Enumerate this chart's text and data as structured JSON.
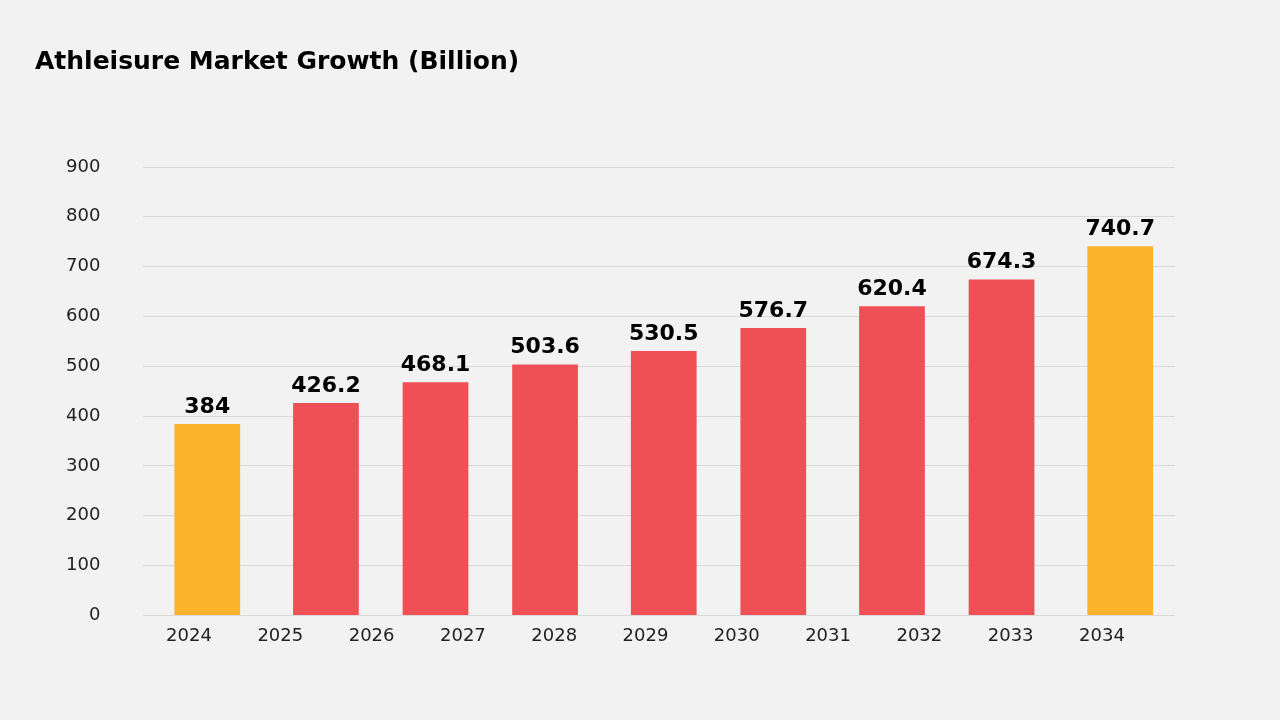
{
  "chart_data": {
    "type": "bar",
    "title": "Athleisure Market Growth (Billion)",
    "x": [
      2024.2,
      2025.5,
      2026.7,
      2027.9,
      2029.2,
      2030.4,
      2031.7,
      2032.9,
      2034.2
    ],
    "values": [
      384,
      426.2,
      468.1,
      503.6,
      530.5,
      576.7,
      620.4,
      674.3,
      740.7
    ],
    "colors": [
      "#fdb22b",
      "#ef5055",
      "#ef5055",
      "#ef5055",
      "#ef5055",
      "#ef5055",
      "#ef5055",
      "#ef5055",
      "#fdb22b"
    ],
    "xlim": [
      2023.5,
      2034.8
    ],
    "xticks": [
      2024,
      2025,
      2026,
      2027,
      2028,
      2029,
      2030,
      2031,
      2032,
      2033,
      2034
    ],
    "ylim": [
      0,
      900
    ],
    "yticks": [
      0,
      100,
      200,
      300,
      400,
      500,
      600,
      700,
      800,
      900
    ],
    "grid": "y",
    "data_labels": true
  }
}
